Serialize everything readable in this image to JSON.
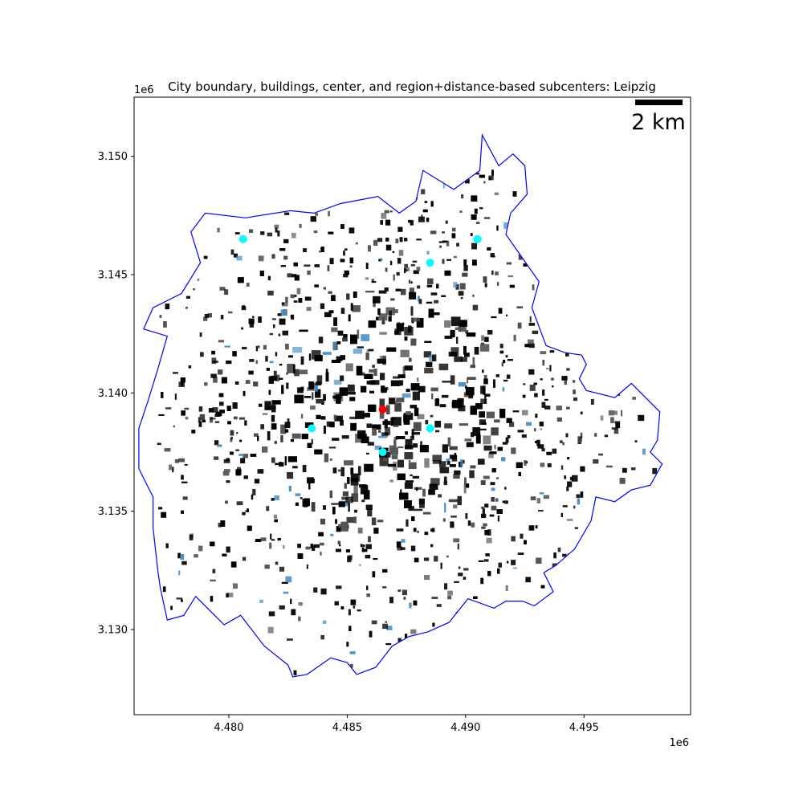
{
  "title": "City boundary, buildings, center, and region+distance-based subcenters: Leipzig",
  "scale_bar": {
    "label": "2 km"
  },
  "axes": {
    "x_ticks": [
      "4.480",
      "4.485",
      "4.490",
      "4.495"
    ],
    "y_ticks": [
      "3.150",
      "3.145",
      "3.140",
      "3.135",
      "3.130"
    ],
    "x_offset": "1e6",
    "y_offset": "1e6"
  },
  "colors": {
    "boundary": "#0000ff",
    "buildings": "#000000",
    "buildings_highlight": "#4a90c8",
    "center": "#ff0000",
    "subcenter": "#00ffff"
  },
  "chart_data": {
    "type": "scatter",
    "title": "City boundary, buildings, center, and region+distance-based subcenters: Leipzig",
    "xlabel": "",
    "ylabel": "",
    "x_unit_offset": "1e6",
    "y_unit_offset": "1e6",
    "xlim": [
      4.476,
      4.4995
    ],
    "ylim": [
      3.1264,
      3.1525
    ],
    "center": {
      "x": 4.4865,
      "y": 3.1393
    },
    "subcenters": [
      {
        "x": 4.4806,
        "y": 3.1465
      },
      {
        "x": 4.4885,
        "y": 3.1455
      },
      {
        "x": 4.4905,
        "y": 3.1465
      },
      {
        "x": 4.4835,
        "y": 3.1385
      },
      {
        "x": 4.4885,
        "y": 3.1385
      },
      {
        "x": 4.4865,
        "y": 3.1375
      }
    ],
    "boundary": [
      [
        4.4788,
        3.1455
      ],
      [
        4.4784,
        3.1468
      ],
      [
        4.479,
        3.1476
      ],
      [
        4.4807,
        3.1474
      ],
      [
        4.4826,
        3.1477
      ],
      [
        4.4836,
        3.1476
      ],
      [
        4.4847,
        3.148
      ],
      [
        4.4863,
        3.1483
      ],
      [
        4.4872,
        3.1476
      ],
      [
        4.4879,
        3.1481
      ],
      [
        4.4882,
        3.1494
      ],
      [
        4.4895,
        3.1486
      ],
      [
        4.4906,
        3.1494
      ],
      [
        4.4907,
        3.1509
      ],
      [
        4.4914,
        3.1496
      ],
      [
        4.492,
        3.1501
      ],
      [
        4.4925,
        3.1496
      ],
      [
        4.4926,
        3.1484
      ],
      [
        4.4919,
        3.1476
      ],
      [
        4.4917,
        3.1467
      ],
      [
        4.4924,
        3.1457
      ],
      [
        4.4931,
        3.1447
      ],
      [
        4.4928,
        3.1436
      ],
      [
        4.4934,
        3.142
      ],
      [
        4.4942,
        3.1417
      ],
      [
        4.4949,
        3.1416
      ],
      [
        4.4951,
        3.1412
      ],
      [
        4.4948,
        3.1406
      ],
      [
        4.4951,
        3.1401
      ],
      [
        4.4963,
        3.1398
      ],
      [
        4.497,
        3.1404
      ],
      [
        4.4974,
        3.14
      ],
      [
        4.4982,
        3.1392
      ],
      [
        4.4981,
        3.138
      ],
      [
        4.4978,
        3.1375
      ],
      [
        4.4983,
        3.137
      ],
      [
        4.4978,
        3.1361
      ],
      [
        4.497,
        3.1359
      ],
      [
        4.4963,
        3.1354
      ],
      [
        4.4955,
        3.1356
      ],
      [
        4.4953,
        3.1346
      ],
      [
        4.4946,
        3.1334
      ],
      [
        4.4938,
        3.1327
      ],
      [
        4.4933,
        3.1324
      ],
      [
        4.4937,
        3.1316
      ],
      [
        4.4929,
        3.131
      ],
      [
        4.4924,
        3.1312
      ],
      [
        4.4917,
        3.1312
      ],
      [
        4.4912,
        3.1309
      ],
      [
        4.4901,
        3.1313
      ],
      [
        4.4893,
        3.1303
      ],
      [
        4.4884,
        3.1299
      ],
      [
        4.4876,
        3.1297
      ],
      [
        4.4869,
        3.1293
      ],
      [
        4.4862,
        3.1284
      ],
      [
        4.4854,
        3.1281
      ],
      [
        4.485,
        3.1286
      ],
      [
        4.4843,
        3.1288
      ],
      [
        4.4833,
        3.1281
      ],
      [
        4.4827,
        3.128
      ],
      [
        4.4825,
        3.1285
      ],
      [
        4.4815,
        3.1293
      ],
      [
        4.4805,
        3.1306
      ],
      [
        4.4798,
        3.1302
      ],
      [
        4.4791,
        3.1309
      ],
      [
        4.4786,
        3.1314
      ],
      [
        4.4781,
        3.1306
      ],
      [
        4.4774,
        3.1304
      ],
      [
        4.4771,
        3.1318
      ],
      [
        4.477,
        3.1325
      ],
      [
        4.4768,
        3.1343
      ],
      [
        4.4768,
        3.1356
      ],
      [
        4.4762,
        3.1368
      ],
      [
        4.4762,
        3.1385
      ],
      [
        4.4766,
        3.1397
      ],
      [
        4.477,
        3.141
      ],
      [
        4.4774,
        3.1424
      ],
      [
        4.4764,
        3.1427
      ],
      [
        4.4768,
        3.1436
      ],
      [
        4.478,
        3.1442
      ],
      [
        4.4788,
        3.1455
      ]
    ]
  }
}
